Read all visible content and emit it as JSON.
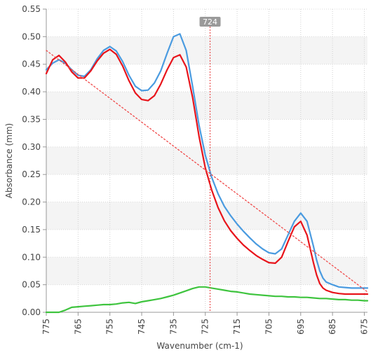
{
  "chart_data": {
    "type": "line",
    "xlabel": "Wavenumber (cm-1)",
    "ylabel": "Absorbance (mm)",
    "xlim": [
      775,
      674
    ],
    "ylim": [
      0,
      0.55
    ],
    "x_reversed": true,
    "grid": true,
    "x_ticks": [
      775,
      765,
      755,
      745,
      735,
      725,
      715,
      705,
      695,
      685,
      675
    ],
    "x_tick_labels": [
      "775",
      "765",
      "755",
      "745",
      "735",
      "725",
      "715",
      "705",
      "695",
      "685",
      "675"
    ],
    "y_ticks": [
      0.0,
      0.05,
      0.1,
      0.15,
      0.2,
      0.25,
      0.3,
      0.35,
      0.4,
      0.45,
      0.5,
      0.55
    ],
    "y_tick_labels": [
      "0.00",
      "0.05",
      "0.10",
      "0.15",
      "0.20",
      "0.25",
      "0.30",
      "0.35",
      "0.40",
      "0.45",
      "0.50",
      "0.55"
    ],
    "cursor": {
      "x": 723.5,
      "label": "724"
    },
    "series": [
      {
        "color": "#4a9be0",
        "x": [
          775,
          773,
          771,
          769,
          767,
          765,
          763,
          761,
          759,
          757,
          755,
          753,
          751,
          749,
          747,
          745,
          743,
          741,
          739,
          737,
          735,
          733,
          731,
          729,
          727,
          725,
          723,
          721,
          719,
          717,
          715,
          713,
          711,
          709,
          707,
          705,
          703,
          701,
          699,
          697,
          695,
          693,
          691,
          690,
          689,
          688,
          687,
          685,
          683,
          681,
          679,
          677,
          675,
          674
        ],
        "y": [
          0.44,
          0.452,
          0.458,
          0.452,
          0.44,
          0.43,
          0.428,
          0.44,
          0.46,
          0.475,
          0.482,
          0.474,
          0.455,
          0.43,
          0.41,
          0.402,
          0.403,
          0.416,
          0.438,
          0.47,
          0.5,
          0.505,
          0.475,
          0.41,
          0.34,
          0.285,
          0.245,
          0.215,
          0.192,
          0.175,
          0.16,
          0.147,
          0.135,
          0.124,
          0.115,
          0.108,
          0.106,
          0.115,
          0.14,
          0.165,
          0.18,
          0.165,
          0.12,
          0.095,
          0.075,
          0.062,
          0.055,
          0.05,
          0.046,
          0.045,
          0.044,
          0.044,
          0.044,
          0.044
        ]
      },
      {
        "color": "#e8141b",
        "x": [
          775,
          773,
          771,
          769,
          767,
          765,
          763,
          761,
          759,
          757,
          755,
          753,
          751,
          749,
          747,
          745,
          743,
          741,
          739,
          737,
          735,
          733,
          731,
          729,
          727,
          725,
          723,
          721,
          719,
          717,
          715,
          713,
          711,
          709,
          707,
          705,
          703,
          701,
          699,
          697,
          695,
          693,
          691,
          690,
          689,
          688,
          687,
          685,
          683,
          681,
          679,
          677,
          675,
          674
        ],
        "y": [
          0.433,
          0.458,
          0.466,
          0.454,
          0.436,
          0.425,
          0.425,
          0.438,
          0.456,
          0.47,
          0.477,
          0.468,
          0.447,
          0.42,
          0.398,
          0.386,
          0.384,
          0.393,
          0.414,
          0.44,
          0.462,
          0.467,
          0.445,
          0.39,
          0.32,
          0.262,
          0.222,
          0.19,
          0.166,
          0.148,
          0.134,
          0.122,
          0.112,
          0.103,
          0.096,
          0.09,
          0.089,
          0.1,
          0.128,
          0.155,
          0.165,
          0.14,
          0.09,
          0.068,
          0.052,
          0.044,
          0.04,
          0.036,
          0.034,
          0.033,
          0.033,
          0.033,
          0.033,
          0.033
        ]
      },
      {
        "color": "#3ec43e",
        "x": [
          775,
          773,
          771,
          769,
          767,
          765,
          763,
          761,
          759,
          757,
          755,
          753,
          751,
          749,
          747,
          745,
          743,
          741,
          739,
          737,
          735,
          733,
          731,
          729,
          727,
          725,
          723,
          721,
          719,
          717,
          715,
          713,
          711,
          709,
          707,
          705,
          703,
          701,
          699,
          697,
          695,
          693,
          691,
          689,
          687,
          685,
          683,
          681,
          679,
          677,
          675,
          674
        ],
        "y": [
          0.0,
          0.0,
          0.0,
          0.004,
          0.009,
          0.01,
          0.011,
          0.012,
          0.013,
          0.014,
          0.014,
          0.015,
          0.017,
          0.018,
          0.016,
          0.019,
          0.021,
          0.023,
          0.025,
          0.028,
          0.031,
          0.035,
          0.039,
          0.043,
          0.046,
          0.046,
          0.044,
          0.042,
          0.04,
          0.038,
          0.037,
          0.035,
          0.033,
          0.032,
          0.031,
          0.03,
          0.029,
          0.029,
          0.028,
          0.028,
          0.027,
          0.027,
          0.026,
          0.025,
          0.025,
          0.024,
          0.023,
          0.023,
          0.022,
          0.022,
          0.021,
          0.021
        ]
      },
      {
        "color": "#f04a4a",
        "dashed": true,
        "x": [
          775,
          674
        ],
        "y": [
          0.475,
          0.037
        ]
      }
    ]
  }
}
